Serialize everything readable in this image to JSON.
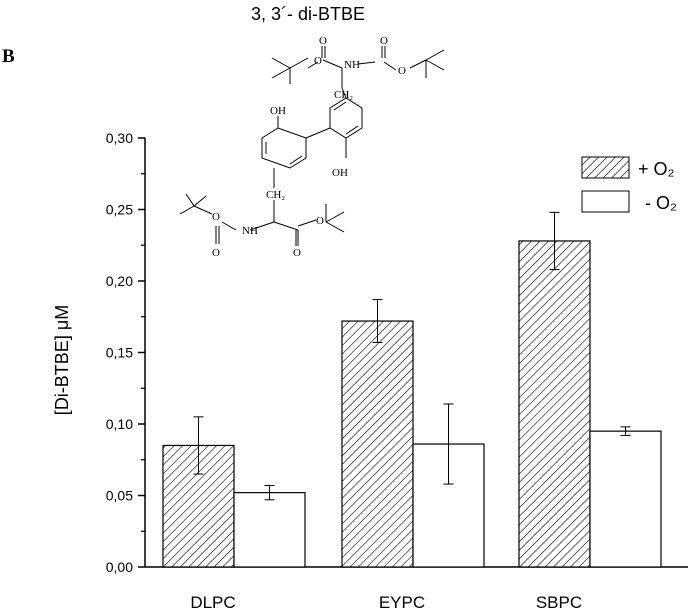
{
  "figure": {
    "title": "3, 3´- di-BTBE",
    "panel_label": "B",
    "structure_labels": {
      "o1": "O",
      "o2": "O",
      "o3": "O",
      "o4": "O",
      "o5": "O",
      "o6": "O",
      "o7": "O",
      "o8": "O",
      "nh1": "NH",
      "nh2": "NH",
      "ch2_top": "CH₂",
      "ch2_bottom": "CH₂",
      "oh1": "OH",
      "oh2": "OH"
    }
  },
  "chart_data": {
    "type": "bar",
    "ylabel": "[Di-BTBE] μM",
    "xlabel": "",
    "ylim": [
      0,
      0.3
    ],
    "yticks": [
      0.0,
      0.05,
      0.1,
      0.15,
      0.2,
      0.25,
      0.3
    ],
    "ytick_labels": [
      "0,00",
      "0,05",
      "0,10",
      "0,15",
      "0,20",
      "0,25",
      "0,30"
    ],
    "categories": [
      "DLPC",
      "EYPC",
      "SBPC"
    ],
    "series": [
      {
        "name": "+ O₂",
        "pattern": "hatched",
        "values": [
          0.085,
          0.172,
          0.228
        ],
        "errors": [
          0.02,
          0.015,
          0.02
        ]
      },
      {
        "name": "- O₂",
        "pattern": "open",
        "values": [
          0.052,
          0.086,
          0.095
        ],
        "errors": [
          0.005,
          0.028,
          0.003
        ]
      }
    ],
    "legend_position": "top-right",
    "grid": false
  }
}
